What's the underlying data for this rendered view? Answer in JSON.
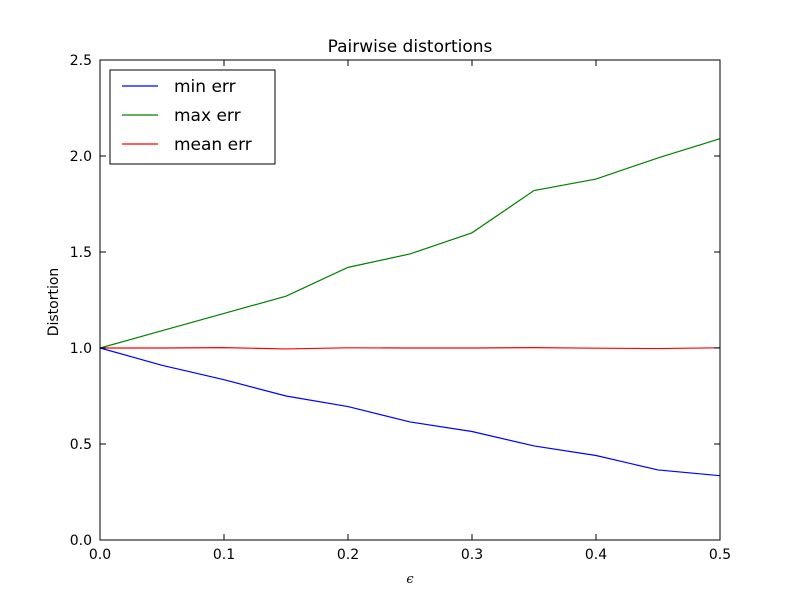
{
  "chart_data": {
    "type": "line",
    "title": "Pairwise distortions",
    "xlabel": "ϵ",
    "ylabel": "Distortion",
    "xlim": [
      0.0,
      0.5
    ],
    "ylim": [
      0.0,
      2.5
    ],
    "xticks": [
      "0.0",
      "0.1",
      "0.2",
      "0.3",
      "0.4",
      "0.5"
    ],
    "yticks": [
      "0.0",
      "0.5",
      "1.0",
      "1.5",
      "2.0",
      "2.5"
    ],
    "grid": false,
    "legend_position": "top-left",
    "x": [
      0.0,
      0.05,
      0.1,
      0.15,
      0.2,
      0.25,
      0.3,
      0.35,
      0.4,
      0.45,
      0.5
    ],
    "series": [
      {
        "name": "min err",
        "color": "#0000ff",
        "values": [
          1.0,
          0.91,
          0.835,
          0.75,
          0.695,
          0.615,
          0.565,
          0.49,
          0.44,
          0.365,
          0.335
        ]
      },
      {
        "name": "max err",
        "color": "#008000",
        "values": [
          1.0,
          1.09,
          1.18,
          1.27,
          1.42,
          1.49,
          1.6,
          1.82,
          1.88,
          1.99,
          2.09
        ]
      },
      {
        "name": "mean err",
        "color": "#ff0000",
        "values": [
          1.0,
          1.0,
          1.002,
          0.995,
          1.001,
          1.0,
          1.0,
          1.002,
          0.999,
          0.997,
          1.001
        ]
      }
    ]
  }
}
